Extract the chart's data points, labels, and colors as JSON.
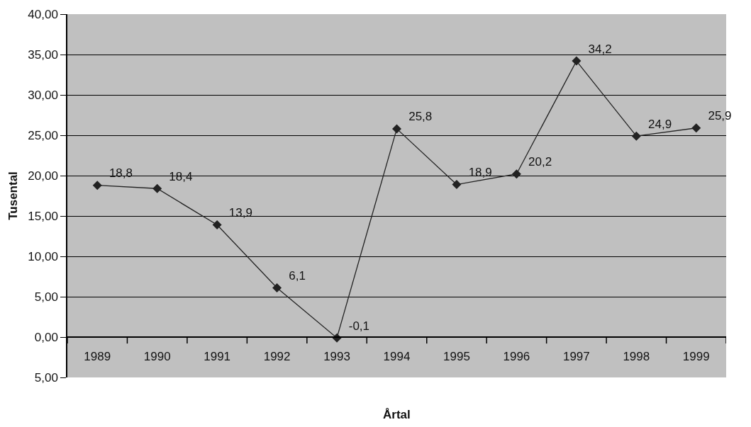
{
  "chart_data": {
    "type": "line",
    "xlabel": "Årtal",
    "ylabel": "Tusental",
    "categories": [
      "1989",
      "1990",
      "1991",
      "1992",
      "1993",
      "1994",
      "1995",
      "1996",
      "1997",
      "1998",
      "1999"
    ],
    "series": [
      {
        "color": "#222222",
        "values": [
          18.8,
          18.4,
          13.9,
          6.1,
          -0.1,
          25.8,
          18.9,
          20.2,
          34.2,
          24.9,
          25.9
        ],
        "value_labels": [
          "18,8",
          "18,4",
          "13,9",
          "6,1",
          "-0,1",
          "25,8",
          "18,9",
          "20,2",
          "34,2",
          "24,9",
          "25,9"
        ]
      }
    ],
    "ylim": [
      -5,
      40
    ],
    "yticks": [
      {
        "value": -5,
        "label": "5,00"
      },
      {
        "value": 0,
        "label": "0,00"
      },
      {
        "value": 5,
        "label": "5,00"
      },
      {
        "value": 10,
        "label": "10,00"
      },
      {
        "value": 15,
        "label": "15,00"
      },
      {
        "value": 20,
        "label": "20,00"
      },
      {
        "value": 25,
        "label": "25,00"
      },
      {
        "value": 30,
        "label": "30,00"
      },
      {
        "value": 35,
        "label": "35,00"
      },
      {
        "value": 40,
        "label": "40,00"
      }
    ],
    "grid": "y",
    "marker": "diamond",
    "line_style": "solid",
    "legend": false
  }
}
